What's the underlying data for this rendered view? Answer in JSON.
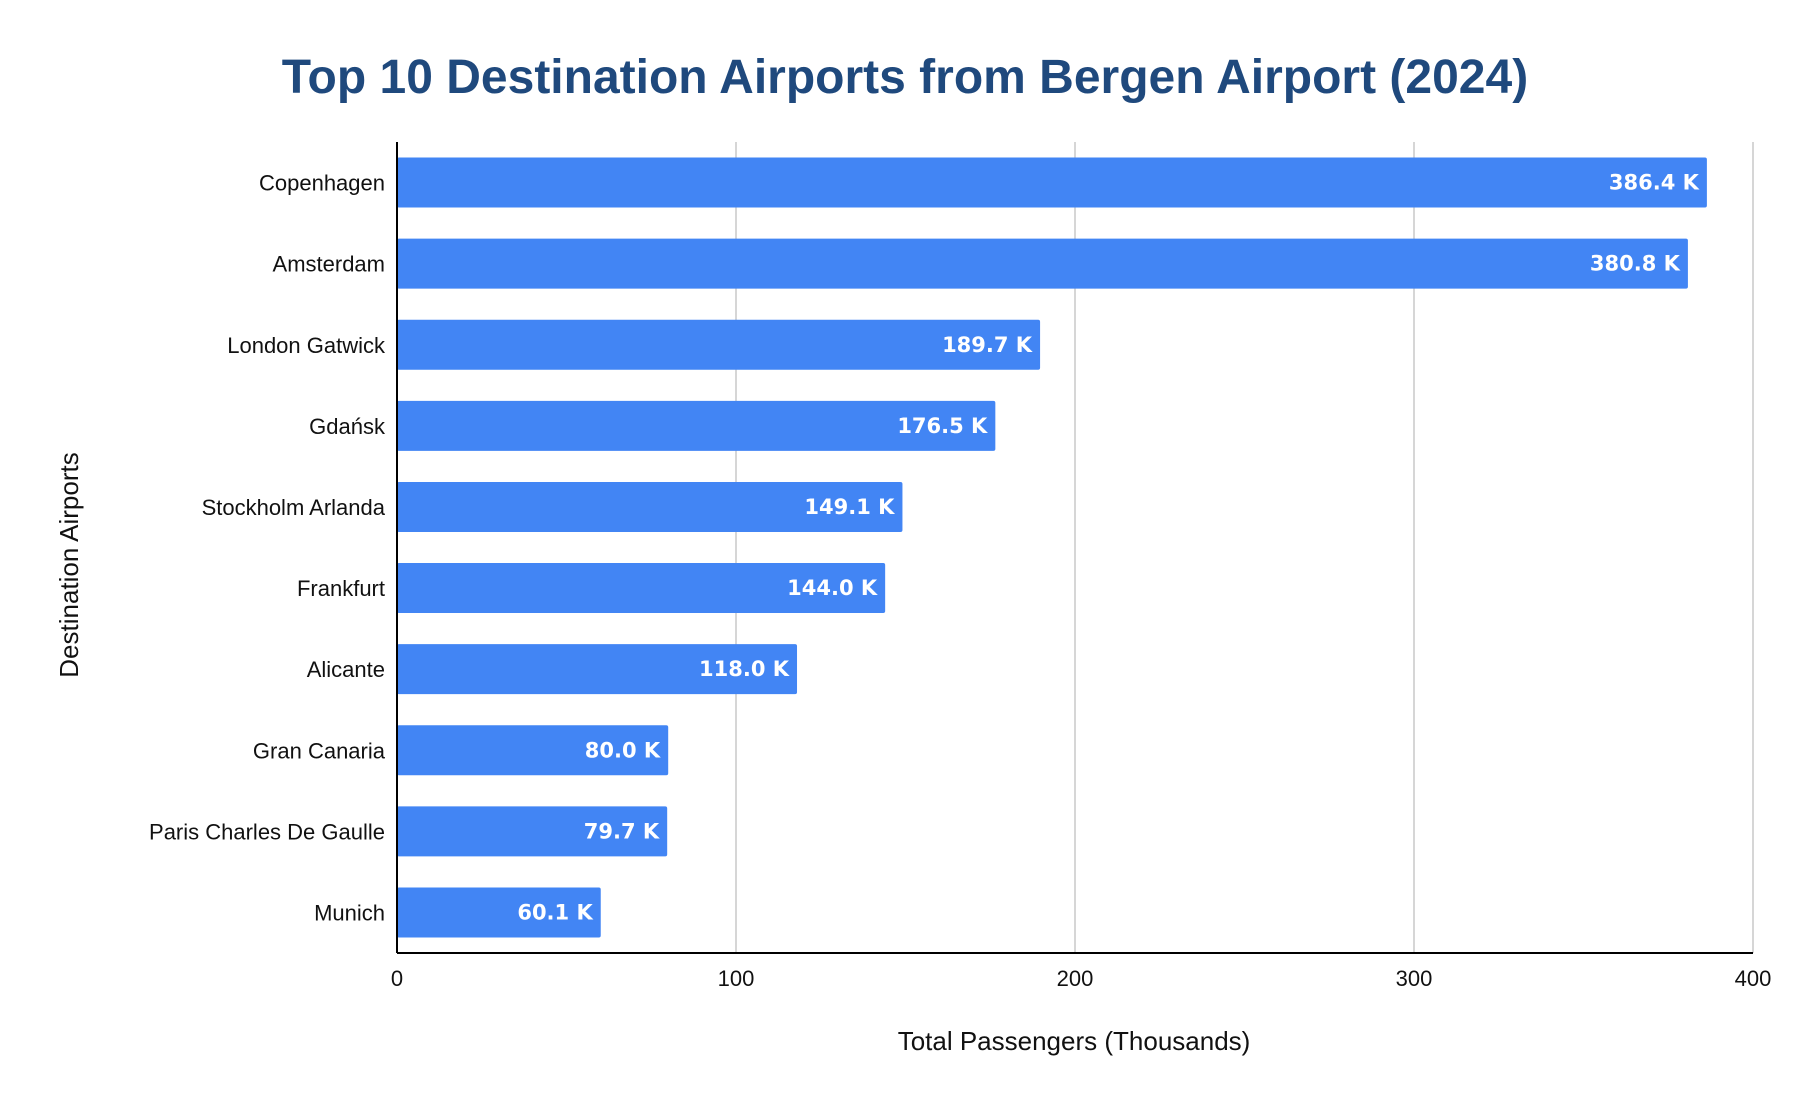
{
  "chart_data": {
    "type": "bar",
    "orientation": "horizontal",
    "title": "Top 10 Destination Airports from Bergen Airport (2024)",
    "xlabel": "Total Passengers (Thousands)",
    "ylabel": "Destination Airports",
    "xlim": [
      0,
      400
    ],
    "xticks": [
      "0",
      "100",
      "200",
      "300",
      "400"
    ],
    "grid": true,
    "legend": "none",
    "bar_color": "#4285f4",
    "categories": [
      "Copenhagen",
      "Amsterdam",
      "London Gatwick",
      "Gdańsk",
      "Stockholm Arlanda",
      "Frankfurt",
      "Alicante",
      "Gran Canaria",
      "Paris Charles De Gaulle",
      "Munich"
    ],
    "values": [
      386.4,
      380.8,
      189.7,
      176.5,
      149.1,
      144.0,
      118.0,
      80.0,
      79.7,
      60.1
    ],
    "data_labels": [
      "386.4 K",
      "380.8 K",
      "189.7 K",
      "176.5 K",
      "149.1 K",
      "144.0 K",
      "118.0 K",
      "80.0 K",
      "79.7 K",
      "60.1 K"
    ]
  }
}
